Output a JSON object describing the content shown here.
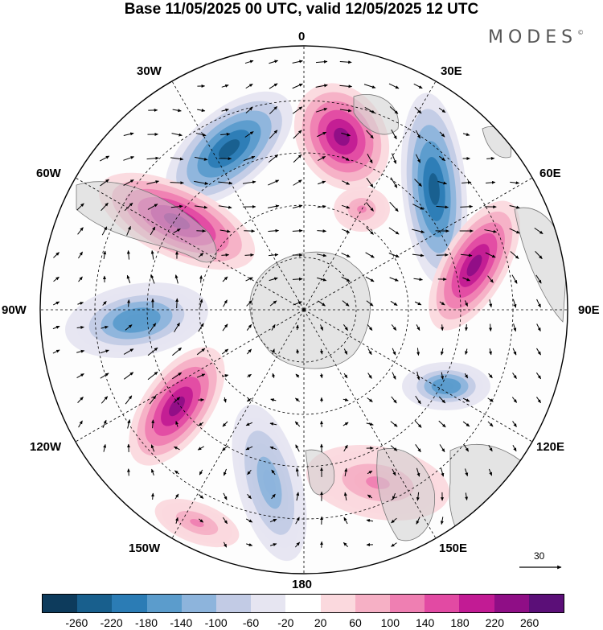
{
  "title": "Base 11/05/2025 00 UTC, valid 12/05/2025 12 UTC",
  "brand": {
    "name": "MODES",
    "mark": "©"
  },
  "map": {
    "projection": "south-polar-stereographic",
    "longitude_labels": {
      "lon_0": "0",
      "lon_30e": "30E",
      "lon_60e": "60E",
      "lon_90e": "90E",
      "lon_120e": "120E",
      "lon_150e": "150E",
      "lon_180": "180",
      "lon_150w": "150W",
      "lon_120w": "120W",
      "lon_90w": "90W",
      "lon_60w": "60W",
      "lon_30w": "30W"
    },
    "anomaly_centers": [
      {
        "sign": "negative",
        "value": -260,
        "sector": "15W-25W"
      },
      {
        "sign": "positive",
        "value": 220,
        "sector": "5E-15E"
      },
      {
        "sign": "negative",
        "value": -260,
        "sector": "35E-45E"
      },
      {
        "sign": "positive",
        "value": 220,
        "sector": "50W-60W"
      },
      {
        "sign": "positive",
        "value": 220,
        "sector": "70E-80E"
      },
      {
        "sign": "negative",
        "value": -180,
        "sector": "80W-90W"
      },
      {
        "sign": "negative",
        "value": -180,
        "sector": "110E-120E"
      },
      {
        "sign": "positive",
        "value": 220,
        "sector": "115W-125W"
      },
      {
        "sign": "negative",
        "value": -140,
        "sector": "155W-165W"
      },
      {
        "sign": "positive",
        "value": 100,
        "sector": "145W-155W"
      }
    ],
    "reference_vector": {
      "label": "30"
    }
  },
  "colorbar": {
    "colors": [
      "#0d3b5c",
      "#185f8d",
      "#2b7cb5",
      "#5b9ccc",
      "#8db4dc",
      "#c2cbe5",
      "#e6e5f1",
      "#ffffff",
      "#fbd9de",
      "#f6b0c5",
      "#ef7fb2",
      "#e24aa3",
      "#c21b94",
      "#8f0e86",
      "#5b0f78"
    ],
    "tick_labels": [
      "-260",
      "-220",
      "-180",
      "-140",
      "-100",
      "-60",
      "-20",
      "20",
      "60",
      "100",
      "140",
      "180",
      "220",
      "260"
    ]
  }
}
